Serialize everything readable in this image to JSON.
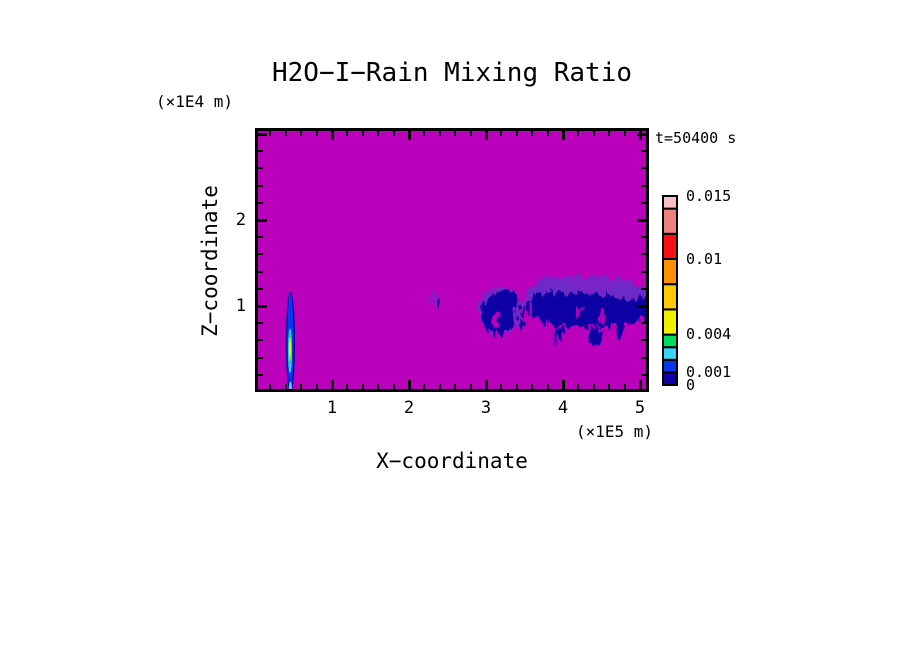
{
  "time_annotation": "t=50400 s",
  "chart_data": {
    "type": "heatmap",
    "title": "H2O−I−Rain Mixing Ratio",
    "xlabel": "X−coordinate",
    "ylabel": "Z−coordinate",
    "x_unit": "(×1E5 m)",
    "z_unit": "(×1E4 m)",
    "x_range": [
      0,
      5.1
    ],
    "z_range": [
      0,
      3.05
    ],
    "x_major_ticks": [
      1,
      2,
      3,
      4,
      5
    ],
    "z_major_ticks": [
      1,
      2,
      3
    ],
    "z_labeled_ticks": [
      1,
      2
    ],
    "minor_tick_step": 0.2,
    "grid": false,
    "field_background_color": "#BB00BB",
    "palette": {
      "magenta": "#BB00BB",
      "navy": "#0E00A4",
      "blue": "#0836EE",
      "cyan": "#36D5F8",
      "green": "#00DC5C",
      "yellow": "#EFEF00",
      "gold": "#FFC800",
      "orange": "#FF9000",
      "red": "#F81010",
      "salmon": "#F08080",
      "pink": "#F8C0C8",
      "fringe": "#6C2BC8"
    },
    "colorbar": {
      "max_value": 0.015,
      "levels": [
        0,
        0.001,
        0.002,
        0.003,
        0.004,
        0.006,
        0.008,
        0.01,
        0.012,
        0.014,
        0.015
      ],
      "segment_colors": [
        "#0E00A4",
        "#0836EE",
        "#36D5F8",
        "#00DC5C",
        "#EFEF00",
        "#FFC800",
        "#FF9000",
        "#F81010",
        "#F08080",
        "#F8C0C8"
      ],
      "labels": [
        {
          "text": "0.015",
          "value": 0.015
        },
        {
          "text": "0.01",
          "value": 0.01
        },
        {
          "text": "0.004",
          "value": 0.004
        },
        {
          "text": "0.001",
          "value": 0.001
        },
        {
          "text": "0",
          "value": 0
        }
      ]
    },
    "features": [
      {
        "name": "plume-outer",
        "shape": "ellipse",
        "x": 0.46,
        "z": 0.58,
        "rx": 0.06,
        "rz": 0.585,
        "color": "navy",
        "opacity": 1,
        "rough": false
      },
      {
        "name": "plume-blue",
        "shape": "ellipse",
        "x": 0.46,
        "z": 0.59,
        "rx": 0.042,
        "rz": 0.56,
        "color": "blue",
        "opacity": 1,
        "rough": false
      },
      {
        "name": "plume-cyan",
        "shape": "ellipse",
        "x": 0.455,
        "z": 0.48,
        "rx": 0.026,
        "rz": 0.26,
        "color": "cyan",
        "opacity": 1,
        "rough": false
      },
      {
        "name": "plume-green",
        "shape": "ellipse",
        "x": 0.455,
        "z": 0.51,
        "rx": 0.017,
        "rz": 0.19,
        "color": "green",
        "opacity": 1,
        "rough": false
      },
      {
        "name": "plume-core",
        "shape": "ellipse",
        "x": 0.455,
        "z": 0.5,
        "rx": 0.011,
        "rz": 0.14,
        "color": "yellow",
        "opacity": 1,
        "rough": false
      },
      {
        "name": "plume-foot",
        "shape": "ellipse",
        "x": 0.46,
        "z": 0.06,
        "rx": 0.02,
        "rz": 0.06,
        "color": "cyan",
        "opacity": 1,
        "rough": false
      },
      {
        "name": "smudge-halo",
        "shape": "ellipse",
        "x": 2.35,
        "z": 1.09,
        "rx": 0.085,
        "rz": 0.075,
        "color": "fringe",
        "opacity": 0.65,
        "rough": true
      },
      {
        "name": "smudge-dot",
        "shape": "ellipse",
        "x": 2.38,
        "z": 1.06,
        "rx": 0.03,
        "rz": 0.04,
        "color": "navy",
        "opacity": 0.8,
        "rough": true
      },
      {
        "name": "clusterA-halo",
        "shape": "ellipse",
        "x": 3.19,
        "z": 0.95,
        "rx": 0.3,
        "rz": 0.28,
        "color": "fringe",
        "opacity": 0.85,
        "rough": true
      },
      {
        "name": "clusterA-core1",
        "shape": "ellipse",
        "x": 3.17,
        "z": 0.91,
        "rx": 0.23,
        "rz": 0.23,
        "color": "navy",
        "opacity": 1,
        "rough": true
      },
      {
        "name": "clusterA-core2",
        "shape": "ellipse",
        "x": 3.28,
        "z": 1.05,
        "rx": 0.15,
        "rz": 0.13,
        "color": "navy",
        "opacity": 1,
        "rough": true
      },
      {
        "name": "clusterA-hole",
        "shape": "ellipse",
        "x": 3.13,
        "z": 0.83,
        "rx": 0.05,
        "rz": 0.1,
        "color": "magenta",
        "opacity": 1,
        "rough": true
      },
      {
        "name": "gap-dash1",
        "shape": "ellipse",
        "x": 3.47,
        "z": 0.93,
        "rx": 0.022,
        "rz": 0.055,
        "color": "navy",
        "opacity": 1,
        "rough": true
      },
      {
        "name": "gap-dash2",
        "shape": "ellipse",
        "x": 3.47,
        "z": 0.76,
        "rx": 0.022,
        "rz": 0.08,
        "color": "navy",
        "opacity": 1,
        "rough": true
      },
      {
        "name": "clusterB-halo1",
        "shape": "ellipse",
        "x": 4.29,
        "z": 1.09,
        "rx": 0.8,
        "rz": 0.27,
        "color": "fringe",
        "opacity": 0.85,
        "rough": true
      },
      {
        "name": "clusterB-halo2",
        "shape": "ellipse",
        "x": 3.88,
        "z": 1.16,
        "rx": 0.3,
        "rz": 0.17,
        "color": "fringe",
        "opacity": 0.8,
        "rough": true
      },
      {
        "name": "clusterB-halo3",
        "shape": "ellipse",
        "x": 4.83,
        "z": 1.06,
        "rx": 0.3,
        "rz": 0.2,
        "color": "fringe",
        "opacity": 0.8,
        "rough": true
      },
      {
        "name": "clusterB-core1",
        "shape": "ellipse",
        "x": 4.29,
        "z": 0.95,
        "rx": 0.75,
        "rz": 0.19,
        "color": "navy",
        "opacity": 1,
        "rough": true
      },
      {
        "name": "clusterB-core2",
        "shape": "ellipse",
        "x": 3.83,
        "z": 1.0,
        "rx": 0.27,
        "rz": 0.17,
        "color": "navy",
        "opacity": 1,
        "rough": true
      },
      {
        "name": "clusterB-core3",
        "shape": "ellipse",
        "x": 4.68,
        "z": 0.92,
        "rx": 0.33,
        "rz": 0.16,
        "color": "navy",
        "opacity": 1,
        "rough": true
      },
      {
        "name": "clusterB-core4",
        "shape": "ellipse",
        "x": 5.0,
        "z": 0.98,
        "rx": 0.14,
        "rz": 0.12,
        "color": "navy",
        "opacity": 1,
        "rough": true
      },
      {
        "name": "dangle1",
        "shape": "ellipse",
        "x": 3.96,
        "z": 0.67,
        "rx": 0.05,
        "rz": 0.1,
        "color": "navy",
        "opacity": 1,
        "rough": true
      },
      {
        "name": "dangle2",
        "shape": "ellipse",
        "x": 4.42,
        "z": 0.64,
        "rx": 0.07,
        "rz": 0.11,
        "color": "navy",
        "opacity": 1,
        "rough": true
      },
      {
        "name": "dangle3",
        "shape": "ellipse",
        "x": 4.74,
        "z": 0.7,
        "rx": 0.05,
        "rz": 0.08,
        "color": "navy",
        "opacity": 1,
        "rough": true
      },
      {
        "name": "clusterB-hole1",
        "shape": "ellipse",
        "x": 4.18,
        "z": 0.94,
        "rx": 0.05,
        "rz": 0.06,
        "color": "magenta",
        "opacity": 0.9,
        "rough": true
      },
      {
        "name": "clusterB-hole2",
        "shape": "ellipse",
        "x": 4.52,
        "z": 0.88,
        "rx": 0.045,
        "rz": 0.07,
        "color": "magenta",
        "opacity": 0.9,
        "rough": true
      }
    ]
  }
}
